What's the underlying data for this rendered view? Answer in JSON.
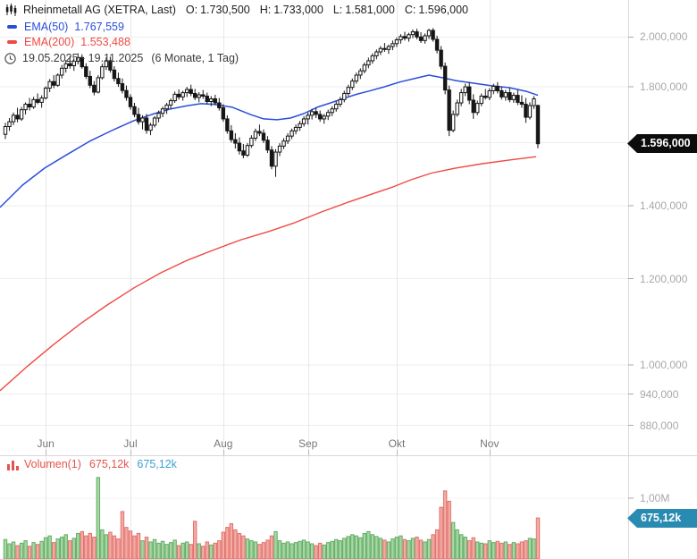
{
  "header": {
    "title": "Rheinmetall AG (XETRA, Last)",
    "ohlc": [
      {
        "label": "O:",
        "value": "1.730,500"
      },
      {
        "label": "H:",
        "value": "1.733,000"
      },
      {
        "label": "L:",
        "value": "1.581,000"
      },
      {
        "label": "C:",
        "value": "1.596,000"
      }
    ],
    "legend": [
      {
        "label": "EMA(50)",
        "value": "1.767,559"
      },
      {
        "label": "EMA(200)",
        "value": "1.553,488"
      }
    ],
    "date_range": "19.05.2025 - 19.11.2025",
    "date_range_detail": "(6 Monate, 1 Tag)"
  },
  "price_axis": {
    "ticks": [
      {
        "value": 2000,
        "label": "2.000,000"
      },
      {
        "value": 1800,
        "label": "1.800,000"
      },
      {
        "value": 1400,
        "label": "1.400,000"
      },
      {
        "value": 1200,
        "label": "1.200,000"
      },
      {
        "value": 1000,
        "label": "1.000,000"
      },
      {
        "value": 940,
        "label": "940,000"
      },
      {
        "value": 880,
        "label": "880,000"
      }
    ],
    "gridline_values": [
      2000,
      1800,
      1600,
      1400,
      1200,
      1000,
      940,
      880
    ],
    "last_price_tag": "1.596,000"
  },
  "x_axis": {
    "months": [
      {
        "label": "Jun",
        "index": 10
      },
      {
        "label": "Jul",
        "index": 31
      },
      {
        "label": "Aug",
        "index": 54
      },
      {
        "label": "Sep",
        "index": 75
      },
      {
        "label": "Okt",
        "index": 97
      },
      {
        "label": "Nov",
        "index": 120
      }
    ]
  },
  "volume_panel": {
    "label": "Volumen(1)",
    "value_red": "675,12k",
    "value_blue": "675,12k",
    "axis_tick": {
      "value": 1.0,
      "label": "1,00M"
    },
    "tag": "675,12k"
  },
  "colors": {
    "ema50": "#2a4ed8",
    "ema200": "#ee4a42",
    "candle": "#161616",
    "candle_up_fill": "#ffffff",
    "vol_up_fill": "#abd6a6",
    "vol_up_stroke": "#5fae63",
    "vol_down_fill": "#f3aba5",
    "vol_down_stroke": "#e2716b",
    "grid": "#ededed",
    "grid_vertical": "#e7e7e7",
    "axis_line": "#d9d9d9",
    "tick": "#a8a8a8",
    "tag_price_bg": "#0c0c0c",
    "tag_volume_bg": "#2a8bb2",
    "legend_red": "#e2544e",
    "value_blue": "#3ba0d2"
  },
  "chart_data": {
    "type": "candlestick",
    "title": "Rheinmetall AG (XETRA, Last)",
    "x_range": "19.05.2025 - 19.11.2025",
    "interval": "1 Tag",
    "scale": "log",
    "last_close": 1596,
    "last_volume_millions": 0.67512,
    "candle_format": [
      "open",
      "high",
      "low",
      "close",
      "volume_millions"
    ],
    "candles": [
      [
        1628,
        1668,
        1612,
        1655,
        0.32
      ],
      [
        1655,
        1685,
        1640,
        1672,
        0.25
      ],
      [
        1672,
        1705,
        1660,
        1695,
        0.28
      ],
      [
        1695,
        1722,
        1670,
        1682,
        0.22
      ],
      [
        1682,
        1725,
        1675,
        1715,
        0.26
      ],
      [
        1715,
        1742,
        1698,
        1735,
        0.3
      ],
      [
        1735,
        1758,
        1712,
        1725,
        0.21
      ],
      [
        1725,
        1762,
        1718,
        1752,
        0.27
      ],
      [
        1752,
        1775,
        1735,
        1742,
        0.24
      ],
      [
        1742,
        1768,
        1722,
        1758,
        0.29
      ],
      [
        1758,
        1802,
        1752,
        1795,
        0.35
      ],
      [
        1795,
        1830,
        1780,
        1820,
        0.38
      ],
      [
        1820,
        1845,
        1795,
        1806,
        0.27
      ],
      [
        1806,
        1852,
        1800,
        1845,
        0.33
      ],
      [
        1845,
        1885,
        1832,
        1872,
        0.36
      ],
      [
        1872,
        1905,
        1855,
        1890,
        0.4
      ],
      [
        1890,
        1920,
        1870,
        1882,
        0.3
      ],
      [
        1882,
        1912,
        1862,
        1900,
        0.34
      ],
      [
        1900,
        1932,
        1888,
        1915,
        0.42
      ],
      [
        1915,
        1928,
        1870,
        1878,
        0.45
      ],
      [
        1878,
        1892,
        1830,
        1840,
        0.38
      ],
      [
        1840,
        1862,
        1795,
        1806,
        0.42
      ],
      [
        1806,
        1822,
        1768,
        1780,
        0.36
      ],
      [
        1780,
        1845,
        1775,
        1835,
        1.34
      ],
      [
        1835,
        1890,
        1828,
        1878,
        0.48
      ],
      [
        1878,
        1915,
        1865,
        1902,
        0.4
      ],
      [
        1902,
        1918,
        1855,
        1865,
        0.44
      ],
      [
        1865,
        1880,
        1820,
        1832,
        0.38
      ],
      [
        1832,
        1855,
        1800,
        1812,
        0.33
      ],
      [
        1812,
        1832,
        1775,
        1786,
        0.78
      ],
      [
        1786,
        1805,
        1748,
        1760,
        0.52
      ],
      [
        1760,
        1772,
        1715,
        1726,
        0.46
      ],
      [
        1726,
        1740,
        1688,
        1698,
        0.38
      ],
      [
        1698,
        1722,
        1662,
        1672,
        0.42
      ],
      [
        1672,
        1695,
        1645,
        1685,
        0.3
      ],
      [
        1685,
        1700,
        1630,
        1642,
        0.36
      ],
      [
        1642,
        1668,
        1625,
        1660,
        0.28
      ],
      [
        1660,
        1692,
        1652,
        1685,
        0.32
      ],
      [
        1685,
        1712,
        1670,
        1702,
        0.26
      ],
      [
        1702,
        1726,
        1688,
        1718,
        0.29
      ],
      [
        1718,
        1740,
        1700,
        1732,
        0.24
      ],
      [
        1732,
        1756,
        1718,
        1748,
        0.27
      ],
      [
        1748,
        1782,
        1740,
        1772,
        0.31
      ],
      [
        1772,
        1790,
        1752,
        1762,
        0.22
      ],
      [
        1762,
        1785,
        1748,
        1778,
        0.26
      ],
      [
        1778,
        1800,
        1762,
        1790,
        0.28
      ],
      [
        1790,
        1808,
        1765,
        1775,
        0.24
      ],
      [
        1775,
        1792,
        1750,
        1760,
        0.62
      ],
      [
        1760,
        1780,
        1742,
        1770,
        0.25
      ],
      [
        1770,
        1788,
        1755,
        1765,
        0.21
      ],
      [
        1765,
        1778,
        1735,
        1745,
        0.28
      ],
      [
        1745,
        1765,
        1728,
        1755,
        0.23
      ],
      [
        1755,
        1770,
        1732,
        1740,
        0.26
      ],
      [
        1740,
        1758,
        1712,
        1722,
        0.3
      ],
      [
        1722,
        1735,
        1672,
        1682,
        0.44
      ],
      [
        1682,
        1695,
        1630,
        1640,
        0.52
      ],
      [
        1640,
        1660,
        1600,
        1610,
        0.58
      ],
      [
        1610,
        1632,
        1580,
        1598,
        0.48
      ],
      [
        1598,
        1618,
        1560,
        1572,
        0.42
      ],
      [
        1572,
        1595,
        1548,
        1558,
        0.38
      ],
      [
        1558,
        1598,
        1552,
        1590,
        0.33
      ],
      [
        1590,
        1625,
        1582,
        1615,
        0.3
      ],
      [
        1615,
        1648,
        1605,
        1638,
        0.28
      ],
      [
        1638,
        1662,
        1622,
        1632,
        0.24
      ],
      [
        1632,
        1645,
        1598,
        1608,
        0.27
      ],
      [
        1608,
        1622,
        1565,
        1575,
        0.31
      ],
      [
        1575,
        1588,
        1512,
        1522,
        0.38
      ],
      [
        1522,
        1578,
        1488,
        1568,
        0.45
      ],
      [
        1568,
        1598,
        1555,
        1588,
        0.3
      ],
      [
        1588,
        1615,
        1578,
        1605,
        0.26
      ],
      [
        1605,
        1632,
        1595,
        1622,
        0.28
      ],
      [
        1622,
        1648,
        1612,
        1640,
        0.25
      ],
      [
        1640,
        1662,
        1628,
        1652,
        0.27
      ],
      [
        1652,
        1675,
        1640,
        1665,
        0.29
      ],
      [
        1665,
        1692,
        1655,
        1682,
        0.31
      ],
      [
        1682,
        1705,
        1662,
        1695,
        0.28
      ],
      [
        1695,
        1718,
        1680,
        1708,
        0.25
      ],
      [
        1708,
        1722,
        1685,
        1698,
        0.22
      ],
      [
        1698,
        1712,
        1672,
        1682,
        0.26
      ],
      [
        1682,
        1700,
        1665,
        1692,
        0.23
      ],
      [
        1692,
        1715,
        1678,
        1705,
        0.27
      ],
      [
        1705,
        1728,
        1692,
        1718,
        0.29
      ],
      [
        1718,
        1745,
        1708,
        1735,
        0.32
      ],
      [
        1735,
        1762,
        1725,
        1752,
        0.3
      ],
      [
        1752,
        1785,
        1742,
        1775,
        0.34
      ],
      [
        1775,
        1808,
        1765,
        1798,
        0.37
      ],
      [
        1798,
        1832,
        1788,
        1822,
        0.4
      ],
      [
        1822,
        1855,
        1812,
        1845,
        0.38
      ],
      [
        1845,
        1872,
        1830,
        1862,
        0.35
      ],
      [
        1862,
        1895,
        1852,
        1885,
        0.42
      ],
      [
        1885,
        1915,
        1872,
        1902,
        0.45
      ],
      [
        1902,
        1932,
        1890,
        1922,
        0.4
      ],
      [
        1922,
        1948,
        1908,
        1938,
        0.37
      ],
      [
        1938,
        1962,
        1925,
        1952,
        0.34
      ],
      [
        1952,
        1975,
        1938,
        1948,
        0.31
      ],
      [
        1948,
        1968,
        1930,
        1960,
        0.28
      ],
      [
        1960,
        1985,
        1945,
        1972,
        0.33
      ],
      [
        1972,
        1998,
        1958,
        1988,
        0.36
      ],
      [
        1988,
        2012,
        1972,
        2002,
        0.38
      ],
      [
        2002,
        2022,
        1985,
        1995,
        0.32
      ],
      [
        1995,
        2018,
        1980,
        2010,
        0.3
      ],
      [
        2010,
        2032,
        1995,
        2022,
        0.34
      ],
      [
        2022,
        2035,
        1990,
        2000,
        0.36
      ],
      [
        2000,
        2020,
        1975,
        1985,
        0.31
      ],
      [
        1985,
        2015,
        1972,
        2005,
        0.28
      ],
      [
        2005,
        2035,
        1992,
        2028,
        0.32
      ],
      [
        2028,
        2038,
        1980,
        1990,
        0.4
      ],
      [
        1990,
        2005,
        1932,
        1945,
        0.48
      ],
      [
        1945,
        1962,
        1868,
        1880,
        0.85
      ],
      [
        1880,
        1895,
        1772,
        1788,
        1.12
      ],
      [
        1788,
        1805,
        1622,
        1642,
        0.95
      ],
      [
        1642,
        1712,
        1635,
        1698,
        0.6
      ],
      [
        1698,
        1752,
        1690,
        1740,
        0.48
      ],
      [
        1740,
        1792,
        1728,
        1778,
        0.4
      ],
      [
        1778,
        1812,
        1765,
        1800,
        0.36
      ],
      [
        1800,
        1818,
        1735,
        1750,
        0.3
      ],
      [
        1750,
        1772,
        1682,
        1705,
        0.35
      ],
      [
        1705,
        1748,
        1695,
        1738,
        0.28
      ],
      [
        1738,
        1775,
        1728,
        1765,
        0.26
      ],
      [
        1765,
        1792,
        1752,
        1760,
        0.25
      ],
      [
        1760,
        1795,
        1750,
        1785,
        0.3
      ],
      [
        1785,
        1812,
        1772,
        1802,
        0.27
      ],
      [
        1802,
        1818,
        1775,
        1785,
        0.29
      ],
      [
        1785,
        1800,
        1752,
        1762,
        0.26
      ],
      [
        1762,
        1788,
        1748,
        1778,
        0.28
      ],
      [
        1778,
        1795,
        1742,
        1752,
        0.24
      ],
      [
        1752,
        1778,
        1740,
        1768,
        0.27
      ],
      [
        1768,
        1788,
        1732,
        1742,
        0.25
      ],
      [
        1742,
        1768,
        1722,
        1735,
        0.28
      ],
      [
        1735,
        1758,
        1668,
        1688,
        0.3
      ],
      [
        1688,
        1742,
        1680,
        1730,
        0.34
      ],
      [
        1730,
        1765,
        1718,
        1755,
        0.33
      ],
      [
        1730.5,
        1733,
        1581,
        1596,
        0.675
      ]
    ],
    "ema50": {
      "name": "EMA(50)",
      "last_value": 1767.559,
      "points_x_value": [
        [
          0,
          1395
        ],
        [
          25,
          1462
        ],
        [
          50,
          1516
        ],
        [
          75,
          1560
        ],
        [
          100,
          1604
        ],
        [
          125,
          1641
        ],
        [
          150,
          1676
        ],
        [
          170,
          1698
        ],
        [
          190,
          1717
        ],
        [
          210,
          1730
        ],
        [
          225,
          1737
        ],
        [
          240,
          1734
        ],
        [
          260,
          1724
        ],
        [
          280,
          1698
        ],
        [
          295,
          1682
        ],
        [
          310,
          1679
        ],
        [
          325,
          1685
        ],
        [
          340,
          1701
        ],
        [
          355,
          1724
        ],
        [
          370,
          1740
        ],
        [
          385,
          1757
        ],
        [
          400,
          1773
        ],
        [
          413,
          1784
        ],
        [
          430,
          1800
        ],
        [
          447,
          1818
        ],
        [
          463,
          1831
        ],
        [
          480,
          1845
        ],
        [
          495,
          1835
        ],
        [
          510,
          1824
        ],
        [
          530,
          1814
        ],
        [
          550,
          1804
        ],
        [
          570,
          1797
        ],
        [
          590,
          1782
        ],
        [
          602,
          1768
        ]
      ]
    },
    "ema200": {
      "name": "EMA(200)",
      "last_value": 1553.488,
      "points_x_value": [
        [
          0,
          947
        ],
        [
          30,
          996
        ],
        [
          60,
          1044
        ],
        [
          90,
          1091
        ],
        [
          120,
          1135
        ],
        [
          150,
          1177
        ],
        [
          180,
          1215
        ],
        [
          210,
          1248
        ],
        [
          240,
          1276
        ],
        [
          270,
          1303
        ],
        [
          300,
          1325
        ],
        [
          330,
          1351
        ],
        [
          360,
          1382
        ],
        [
          390,
          1411
        ],
        [
          413,
          1432
        ],
        [
          440,
          1457
        ],
        [
          460,
          1479
        ],
        [
          483,
          1500
        ],
        [
          510,
          1516
        ],
        [
          540,
          1530
        ],
        [
          570,
          1542
        ],
        [
          600,
          1553
        ]
      ]
    },
    "volume_axis": {
      "tick_value_millions": 1.0,
      "tick_label": "1,00M"
    }
  }
}
